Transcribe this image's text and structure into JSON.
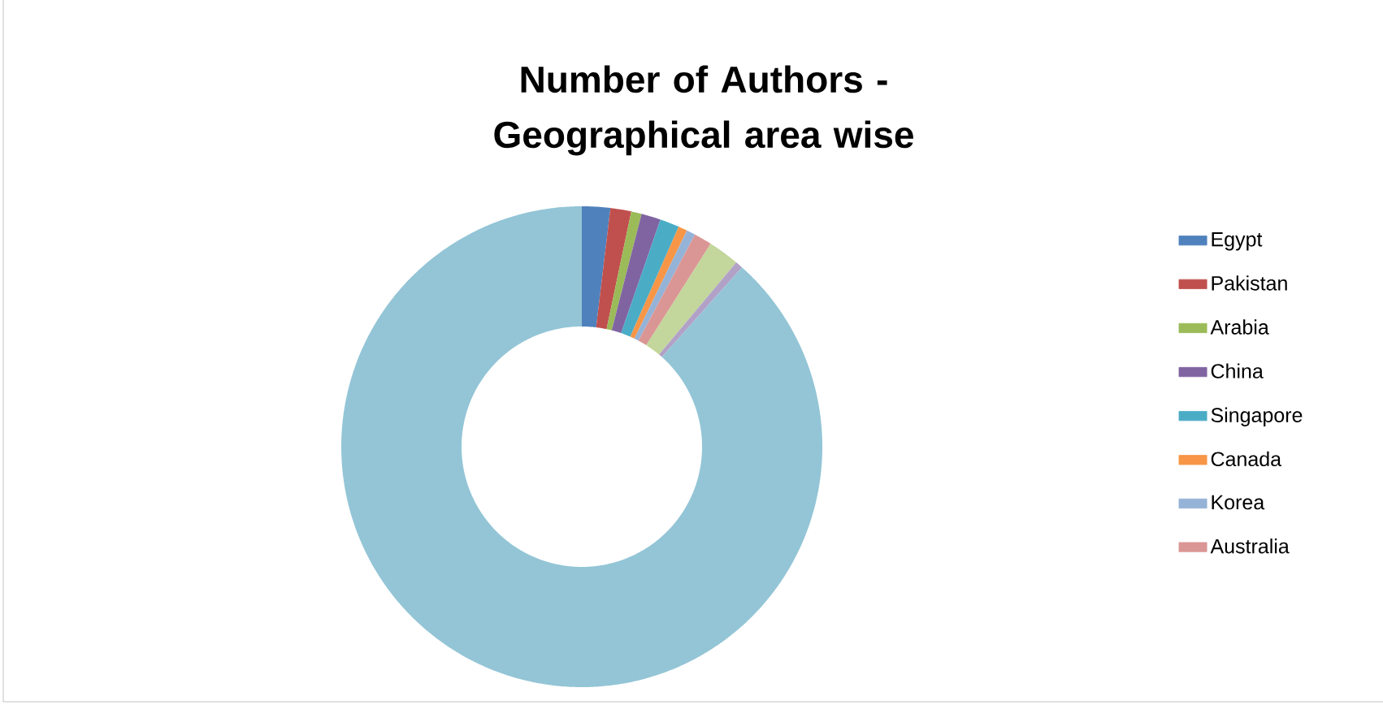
{
  "chart_data": {
    "type": "donut",
    "title": "Number of Authors - Geographical area wise",
    "categories": [
      "Egypt",
      "Pakistan",
      "Arabia",
      "China",
      "Singapore",
      "Canada",
      "Korea",
      "Australia",
      null,
      null,
      null
    ],
    "values": [
      1.9,
      1.4,
      0.7,
      1.3,
      1.3,
      0.6,
      0.6,
      1.2,
      2.1,
      0.5,
      88.4
    ],
    "colors": [
      "#4f81bd",
      "#c0504d",
      "#9bbb59",
      "#8064a2",
      "#4bacc6",
      "#f79646",
      "#95b3d7",
      "#da9694",
      "#c3d69b",
      "#b2a1c7",
      "#93c5d6"
    ],
    "legend": "right"
  }
}
